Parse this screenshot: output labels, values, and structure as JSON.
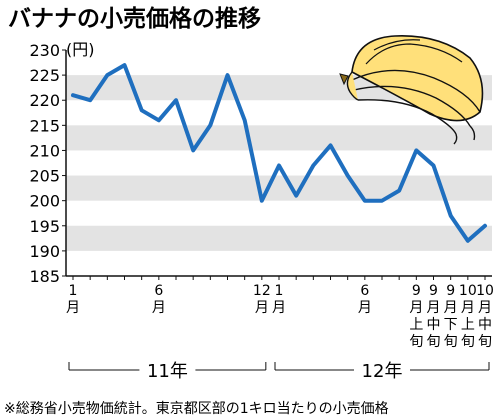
{
  "chart_data": {
    "type": "line",
    "title": "バナナの小売価格の推移",
    "ylabel": "(円)",
    "ylim": [
      185,
      230
    ],
    "yticks": [
      185,
      190,
      195,
      200,
      205,
      210,
      215,
      220,
      225,
      230
    ],
    "grid": "horizontal alternating bands",
    "line_color": "#1f6fbf",
    "band_color": "#e3e3e3",
    "x_tick_labels": [
      {
        "index": 0,
        "lines": [
          "1",
          "月"
        ]
      },
      {
        "index": 5,
        "lines": [
          "6",
          "月"
        ]
      },
      {
        "index": 11,
        "lines": [
          "12",
          "月"
        ]
      },
      {
        "index": 12,
        "lines": [
          "1",
          "月"
        ]
      },
      {
        "index": 17,
        "lines": [
          "6",
          "月"
        ]
      },
      {
        "index": 20,
        "lines": [
          "9",
          "月",
          "上",
          "旬"
        ]
      },
      {
        "index": 21,
        "lines": [
          "9",
          "月",
          "中",
          "旬"
        ]
      },
      {
        "index": 22,
        "lines": [
          "9",
          "月",
          "下",
          "旬"
        ]
      },
      {
        "index": 23,
        "lines": [
          "10",
          "月",
          "上",
          "旬"
        ]
      },
      {
        "index": 24,
        "lines": [
          "10",
          "月",
          "中",
          "旬"
        ]
      }
    ],
    "year_groups": [
      {
        "label": "11年",
        "from": 0,
        "to": 11
      },
      {
        "label": "12年",
        "from": 12,
        "to": 24
      }
    ],
    "series": [
      {
        "values": [
          221,
          220,
          225,
          227,
          218,
          216,
          220,
          210,
          215,
          225,
          216,
          200,
          207,
          201,
          207,
          211,
          205,
          200,
          200,
          202,
          210,
          207,
          197,
          192,
          195
        ]
      }
    ],
    "note": "※総務省小売物価統計。東京都区部の1キロ当たりの小売価格"
  }
}
